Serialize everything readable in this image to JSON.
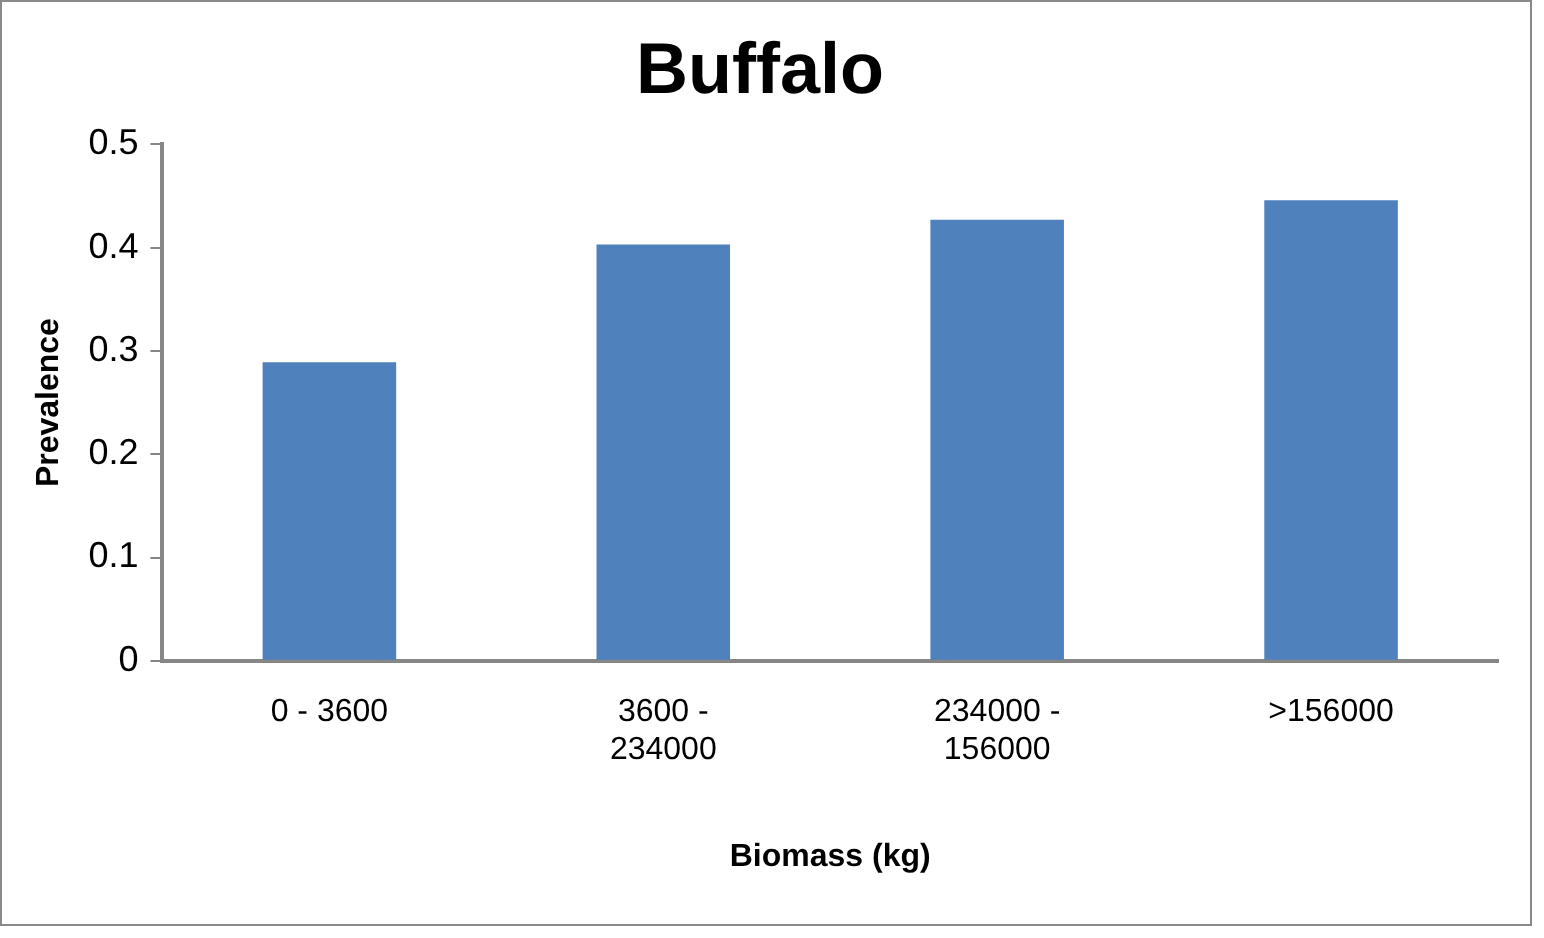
{
  "chart_data": {
    "type": "bar",
    "title": "Buffalo",
    "xlabel": "Biomass (kg)",
    "ylabel": "Prevalence",
    "categories": [
      "0 - 3600",
      "3600 - 234000",
      "234000 - 156000",
      ">156000"
    ],
    "values": [
      0.289,
      0.403,
      0.427,
      0.446
    ],
    "color": "#4f81bd",
    "ylim": [
      0,
      0.5
    ],
    "yticks": [
      0,
      0.1,
      0.2,
      0.3,
      0.4,
      0.5
    ],
    "grid": false,
    "legend": false
  }
}
